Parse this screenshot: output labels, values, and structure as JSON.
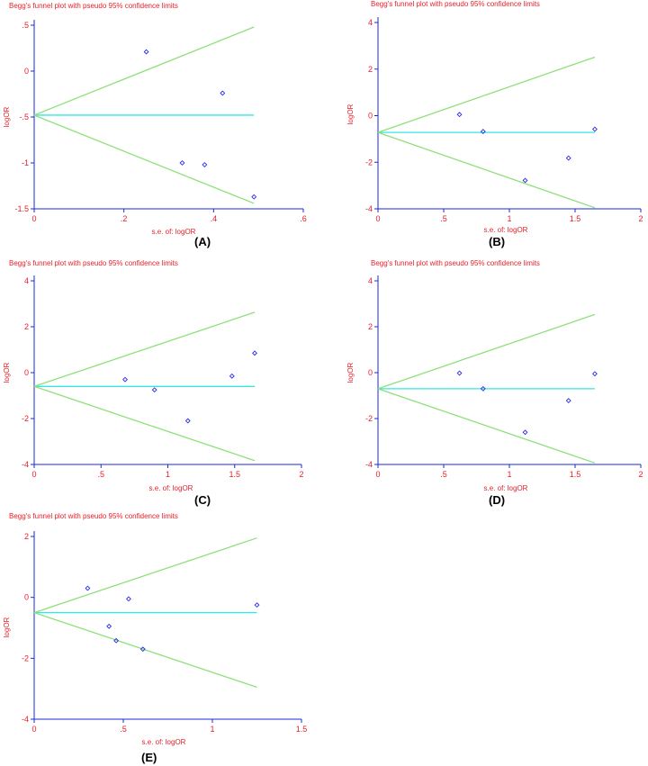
{
  "colors": {
    "text": "#e8202a",
    "axis": "#1a2ad8",
    "limits": "#8de07a",
    "center": "#35e6e6",
    "points": "#2a2ae8"
  },
  "chart_data": [
    {
      "type": "scatter",
      "title": "Begg's funnel plot with pseudo 95% confidence limits",
      "xlabel": "s.e. of: logOR",
      "ylabel": "logOR",
      "panel_label": "(A)",
      "xlim": [
        0,
        0.6
      ],
      "ylim": [
        -1.5,
        0.5
      ],
      "xticks": [
        0,
        0.2,
        0.4,
        0.6
      ],
      "xtick_labels": [
        "0",
        ".2",
        ".4",
        ".6"
      ],
      "yticks": [
        -1.5,
        -1,
        -0.5,
        0,
        0.5
      ],
      "ytick_labels": [
        "-1.5",
        "-1",
        "-.5",
        "0",
        ".5"
      ],
      "pooled": -0.48,
      "max_se": 0.49,
      "points": [
        [
          0.25,
          0.21
        ],
        [
          0.42,
          -0.24
        ],
        [
          0.33,
          -1.0
        ],
        [
          0.38,
          -1.02
        ],
        [
          0.49,
          -1.37
        ]
      ]
    },
    {
      "type": "scatter",
      "title": "Begg's funnel plot with pseudo 95% confidence limits",
      "xlabel": "s.e. of: logOR",
      "ylabel": "logOR",
      "panel_label": "(B)",
      "xlim": [
        0,
        2
      ],
      "ylim": [
        -4,
        4
      ],
      "xticks": [
        0,
        0.5,
        1,
        1.5,
        2
      ],
      "xtick_labels": [
        "0",
        ".5",
        "1",
        "1.5",
        "2"
      ],
      "yticks": [
        -4,
        -2,
        0,
        2,
        4
      ],
      "ytick_labels": [
        "-4",
        "-2",
        "0",
        "2",
        "4"
      ],
      "pooled": -0.72,
      "max_se": 1.65,
      "points": [
        [
          0.62,
          0.05
        ],
        [
          0.8,
          -0.68
        ],
        [
          1.12,
          -2.78
        ],
        [
          1.45,
          -1.82
        ],
        [
          1.65,
          -0.58
        ]
      ]
    },
    {
      "type": "scatter",
      "title": "Begg's funnel plot with pseudo 95% confidence limits",
      "xlabel": "s.e. of: logOR",
      "ylabel": "logOR",
      "panel_label": "(C)",
      "xlim": [
        0,
        2
      ],
      "ylim": [
        -4,
        4
      ],
      "xticks": [
        0,
        0.5,
        1,
        1.5,
        2
      ],
      "xtick_labels": [
        "0",
        ".5",
        "1",
        "1.5",
        "2"
      ],
      "yticks": [
        -4,
        -2,
        0,
        2,
        4
      ],
      "ytick_labels": [
        "-4",
        "-2",
        "0",
        "2",
        "4"
      ],
      "pooled": -0.6,
      "max_se": 1.65,
      "points": [
        [
          0.68,
          -0.3
        ],
        [
          0.9,
          -0.75
        ],
        [
          1.15,
          -2.1
        ],
        [
          1.48,
          -0.15
        ],
        [
          1.65,
          0.85
        ]
      ]
    },
    {
      "type": "scatter",
      "title": "Begg's funnel plot with pseudo 95% confidence limits",
      "xlabel": "s.e. of: logOR",
      "ylabel": "logOR",
      "panel_label": "(D)",
      "xlim": [
        0,
        2
      ],
      "ylim": [
        -4,
        4
      ],
      "xticks": [
        0,
        0.5,
        1,
        1.5,
        2
      ],
      "xtick_labels": [
        "0",
        ".5",
        "1",
        "1.5",
        "2"
      ],
      "yticks": [
        -4,
        -2,
        0,
        2,
        4
      ],
      "ytick_labels": [
        "-4",
        "-2",
        "0",
        "2",
        "4"
      ],
      "pooled": -0.7,
      "max_se": 1.65,
      "points": [
        [
          0.62,
          -0.02
        ],
        [
          0.8,
          -0.7
        ],
        [
          1.12,
          -2.6
        ],
        [
          1.45,
          -1.22
        ],
        [
          1.65,
          -0.05
        ]
      ]
    },
    {
      "type": "scatter",
      "title": "Begg's funnel plot with pseudo 95% confidence limits",
      "xlabel": "s.e. of: logOR",
      "ylabel": "logOR",
      "panel_label": "(E)",
      "xlim": [
        0,
        1.5
      ],
      "ylim": [
        -4,
        2
      ],
      "xticks": [
        0,
        0.5,
        1,
        1.5
      ],
      "xtick_labels": [
        "0",
        ".5",
        "1",
        "1.5"
      ],
      "yticks": [
        -4,
        -2,
        0,
        2
      ],
      "ytick_labels": [
        "-4",
        "-2",
        "0",
        "2"
      ],
      "pooled": -0.5,
      "max_se": 1.25,
      "points": [
        [
          0.3,
          0.3
        ],
        [
          0.42,
          -0.95
        ],
        [
          0.46,
          -1.42
        ],
        [
          0.53,
          -0.05
        ],
        [
          0.61,
          -1.7
        ],
        [
          1.25,
          -0.25
        ]
      ]
    }
  ]
}
